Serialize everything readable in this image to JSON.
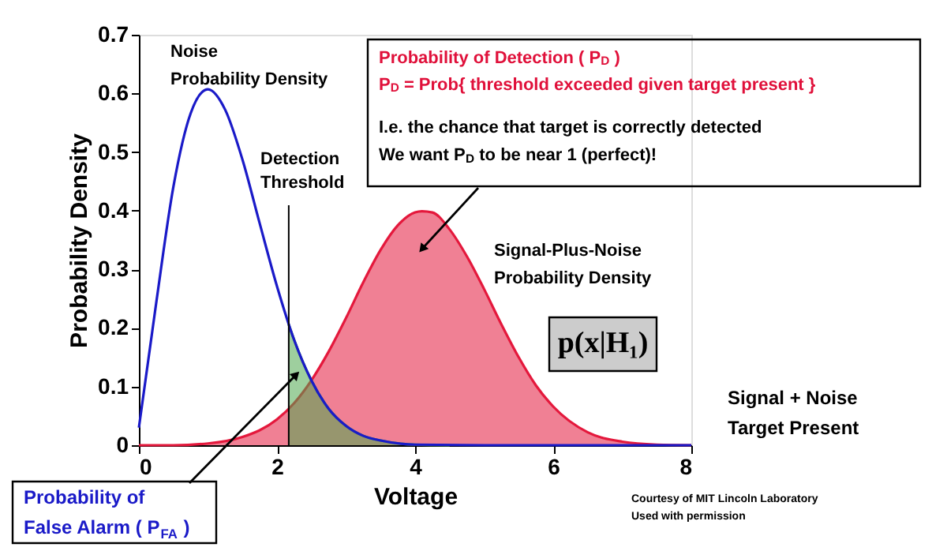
{
  "chart_data": {
    "type": "line",
    "xlabel": "Voltage",
    "ylabel": "Probability Density",
    "xlim": [
      0,
      8
    ],
    "ylim": [
      0,
      0.7
    ],
    "xticks": [
      0,
      2,
      4,
      6,
      8
    ],
    "yticks": [
      0,
      0.1,
      0.2,
      0.3,
      0.4,
      0.5,
      0.6,
      0.7
    ],
    "grid": false,
    "series": [
      {
        "type": "area",
        "color": "#e4183c",
        "x": [
          0,
          0.5,
          1,
          1.5,
          2,
          2.25,
          2.5,
          2.75,
          3,
          3.25,
          3.5,
          3.75,
          4,
          4.1,
          4.25,
          4.5,
          4.75,
          5,
          5.25,
          5.5,
          5.75,
          6,
          6.5,
          7,
          7.5,
          8
        ],
        "values": [
          0,
          0,
          0.003,
          0.014,
          0.044,
          0.072,
          0.111,
          0.16,
          0.217,
          0.278,
          0.333,
          0.375,
          0.397,
          0.399,
          0.397,
          0.368,
          0.322,
          0.266,
          0.206,
          0.15,
          0.102,
          0.066,
          0.022,
          0.006,
          0.001,
          0
        ]
      },
      {
        "type": "area",
        "color": "#4ea84e",
        "x": [
          2.17,
          2.25,
          2.5,
          2.75,
          3,
          3.25,
          3.5,
          4,
          4.5
        ],
        "values": [
          0.206,
          0.179,
          0.11,
          0.062,
          0.033,
          0.016,
          0.008,
          0.001,
          0
        ]
      },
      {
        "color": "#1a1ac8",
        "x": [
          0,
          0.25,
          0.5,
          0.75,
          1,
          1.25,
          1.5,
          1.75,
          2,
          2.25,
          2.5,
          2.75,
          3,
          3.25,
          3.5,
          4,
          5,
          8
        ],
        "values": [
          0.03,
          0.242,
          0.441,
          0.566,
          0.607,
          0.572,
          0.487,
          0.378,
          0.271,
          0.179,
          0.11,
          0.062,
          0.033,
          0.016,
          0.008,
          0.001,
          0,
          0
        ]
      }
    ],
    "ref_lines": [
      {
        "axis": "x",
        "value": 2.17,
        "label": "Detection\nThreshold",
        "color": "#000000"
      }
    ],
    "annotations": [
      "Noise\nProbability Density",
      "Probability of Detection ( P$_{D}$ )",
      "P$_{D}$ = Prob{ threshold exceeded given target present }",
      "I.e. the chance that target is correctly detected\nWe want P$_{D}$ to be near 1 (perfect)!",
      "Signal-Plus-Noise\nProbability Density",
      "p(x|H₁)",
      "Signal + Noise\nTarget Present",
      "Probability of\nFalse Alarm ( P$_{FA}$ )",
      "Courtesy of MIT Lincoln Laboratory\nUsed with permission"
    ]
  }
}
